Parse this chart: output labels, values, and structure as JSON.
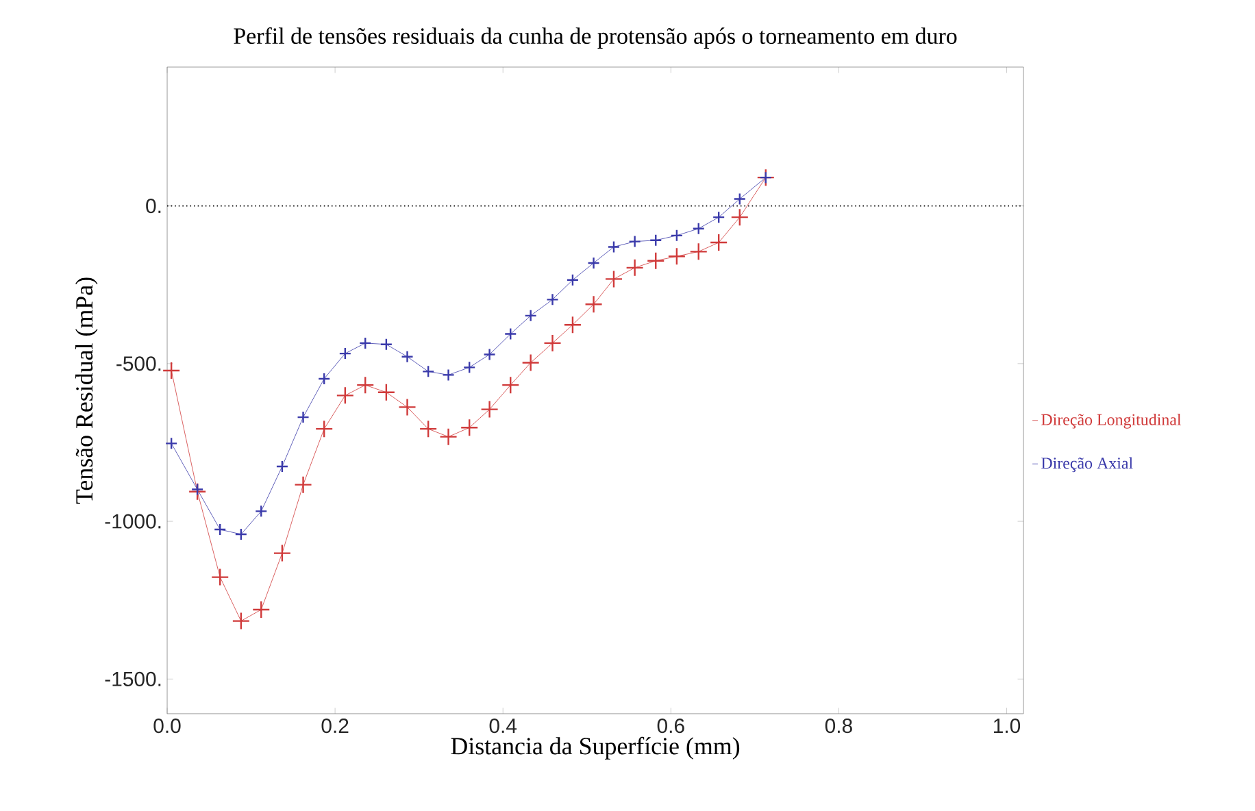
{
  "chart_data": {
    "type": "line",
    "title": "Perfil de tensões residuais da cunha de protensão após o torneamento em duro",
    "xlabel": "Distancia da Superfície (mm)",
    "ylabel": "Tensão Residual (mPa)",
    "x": [
      0.005,
      0.036,
      0.063,
      0.088,
      0.112,
      0.137,
      0.162,
      0.187,
      0.212,
      0.236,
      0.261,
      0.286,
      0.311,
      0.335,
      0.36,
      0.384,
      0.409,
      0.433,
      0.459,
      0.483,
      0.508,
      0.532,
      0.557,
      0.582,
      0.607,
      0.633,
      0.657,
      0.682,
      0.713
    ],
    "series": [
      {
        "name": "Direção Longitudinal",
        "color": "#d03a3a",
        "values": [
          -522,
          -906,
          -1177,
          -1316,
          -1280,
          -1101,
          -884,
          -707,
          -601,
          -568,
          -591,
          -638,
          -707,
          -732,
          -703,
          -645,
          -568,
          -497,
          -435,
          -377,
          -312,
          -232,
          -196,
          -174,
          -160,
          -145,
          -116,
          -36,
          90
        ]
      },
      {
        "name": "Direção Axial",
        "color": "#3a3aaa",
        "values": [
          -753,
          -899,
          -1026,
          -1041,
          -968,
          -826,
          -670,
          -548,
          -468,
          -435,
          -439,
          -478,
          -525,
          -536,
          -512,
          -471,
          -406,
          -348,
          -297,
          -235,
          -181,
          -130,
          -113,
          -109,
          -94,
          -72,
          -36,
          22,
          90
        ]
      }
    ],
    "xlim": [
      0,
      1.02
    ],
    "ylim": [
      -1610,
      440
    ],
    "xticks": [
      {
        "value": 0,
        "label": "0.0"
      },
      0.2,
      0.4,
      0.6,
      0.8,
      {
        "value": 1,
        "label": "1.0"
      }
    ],
    "yticks": [
      {
        "value": 0,
        "label": "0."
      },
      {
        "value": -500,
        "label": "-500."
      },
      {
        "value": -1000,
        "label": "-1000."
      },
      {
        "value": -1500,
        "label": "-1500."
      }
    ],
    "ref_lines": [
      {
        "axis": "y",
        "value": 0,
        "line_style": "dotted"
      }
    ],
    "grid": false,
    "legend": "right",
    "marker": "cross",
    "line_style": "solid"
  }
}
